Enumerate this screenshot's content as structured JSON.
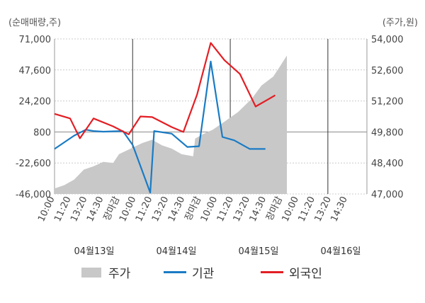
{
  "chart_data": {
    "type": "line",
    "left_axis_unit": "(순매매량,주)",
    "right_axis_unit": "(주가,원)",
    "left_ticks": [
      "71,000",
      "47,600",
      "24,200",
      "800",
      "-22,600",
      "-46,000"
    ],
    "right_ticks": [
      "54,000",
      "52,600",
      "51,200",
      "49,800",
      "48,400",
      "47,000"
    ],
    "left_range": [
      -46000,
      71000
    ],
    "right_range": [
      47000,
      54000
    ],
    "x_slots": 16,
    "x_tick_labels": [
      "10:00",
      "11:20",
      "13:20",
      "14:30",
      "장마감",
      "10:00",
      "11:20",
      "13:20",
      "14:30",
      "장마감",
      "10:00",
      "11:20",
      "13:20",
      "14:30",
      "장마감",
      "10:00",
      "11:20",
      "13:20",
      "14:30"
    ],
    "x_tick_highlight": [
      false,
      false,
      false,
      false,
      true,
      false,
      false,
      false,
      false,
      true,
      false,
      false,
      false,
      false,
      true,
      true,
      false,
      false,
      false
    ],
    "dates": [
      "04월13일",
      "04월14일",
      "04월15일",
      "04월16일"
    ],
    "series": [
      {
        "name": "기관",
        "color": "#1a7bc4",
        "axis": "left",
        "points": [
          [
            0,
            -12000
          ],
          [
            1,
            -2000
          ],
          [
            1.6,
            2500
          ],
          [
            2,
            1500
          ],
          [
            2.5,
            1000
          ],
          [
            3,
            1300
          ],
          [
            3.5,
            1500
          ],
          [
            4,
            -9000
          ],
          [
            4.9,
            -45000
          ],
          [
            5.1,
            1500
          ],
          [
            6,
            -500
          ],
          [
            6.8,
            -10500
          ],
          [
            7.4,
            -10000
          ],
          [
            8,
            54000
          ],
          [
            8.6,
            -3000
          ],
          [
            9.2,
            -5500
          ],
          [
            10,
            -12000
          ],
          [
            10.8,
            -12000
          ]
        ]
      },
      {
        "name": "외국인",
        "color": "#e31e24",
        "axis": "left",
        "points": [
          [
            0,
            14500
          ],
          [
            0.8,
            11000
          ],
          [
            1.3,
            -4000
          ],
          [
            2,
            11000
          ],
          [
            3,
            5000
          ],
          [
            3.8,
            -1000
          ],
          [
            4.4,
            12500
          ],
          [
            5,
            12000
          ],
          [
            6,
            4500
          ],
          [
            6.6,
            800
          ],
          [
            7.3,
            29000
          ],
          [
            8,
            68000
          ],
          [
            8.7,
            55000
          ],
          [
            9.5,
            44500
          ],
          [
            10.3,
            20000
          ],
          [
            11.3,
            28500
          ]
        ]
      },
      {
        "name": "주가",
        "color": "#c8c8c8",
        "axis": "right",
        "points": [
          [
            0,
            47250
          ],
          [
            0.5,
            47400
          ],
          [
            1,
            47650
          ],
          [
            1.5,
            48100
          ],
          [
            2,
            48250
          ],
          [
            2.5,
            48450
          ],
          [
            3,
            48400
          ],
          [
            3.3,
            48800
          ],
          [
            4.5,
            49300
          ],
          [
            5,
            49450
          ],
          [
            5.5,
            49200
          ],
          [
            6,
            49050
          ],
          [
            6.5,
            48800
          ],
          [
            7.1,
            48700
          ],
          [
            7.2,
            49500
          ],
          [
            7.6,
            49700
          ],
          [
            8.1,
            49900
          ],
          [
            8.6,
            50200
          ],
          [
            9.4,
            50700
          ],
          [
            10.1,
            51300
          ],
          [
            10.6,
            51900
          ],
          [
            11.2,
            52300
          ],
          [
            11.5,
            52700
          ],
          [
            11.9,
            53250
          ]
        ]
      }
    ],
    "legend": [
      {
        "label": "주가",
        "color": "#c8c8c8",
        "kind": "area"
      },
      {
        "label": "기관",
        "color": "#1a7bc4",
        "kind": "line"
      },
      {
        "label": "외국인",
        "color": "#e31e24",
        "kind": "line"
      }
    ],
    "gridlines": "dashed horizontal",
    "legend_position": "bottom"
  }
}
